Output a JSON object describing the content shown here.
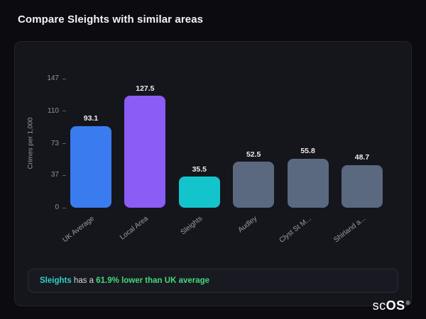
{
  "page": {
    "title": "Compare Sleights with similar areas"
  },
  "chart_data": {
    "type": "bar",
    "categories": [
      "UK Average",
      "Local Area",
      "Sleights",
      "Audley",
      "Clyst St M...",
      "Shirland a..."
    ],
    "values": [
      93.1,
      127.5,
      35.5,
      52.5,
      55.8,
      48.7
    ],
    "value_labels": [
      "93.1",
      "127.5",
      "35.5",
      "52.5",
      "55.8",
      "48.7"
    ],
    "bar_colors": [
      "#3b7bf0",
      "#8b5cf6",
      "#14c4cc",
      "#5a6980",
      "#5a6980",
      "#5a6980"
    ],
    "title": "",
    "xlabel": "",
    "ylabel": "Crimes per 1,000",
    "yticks": [
      0,
      37,
      73,
      110,
      147
    ],
    "ylim": [
      0,
      147
    ],
    "grid": false,
    "legend": false
  },
  "note": {
    "area": "Sleights",
    "middle": " has a ",
    "highlight": "61.9% lower than UK average"
  },
  "brand": {
    "light": "sc",
    "bold": "OS",
    "reg": "®"
  }
}
